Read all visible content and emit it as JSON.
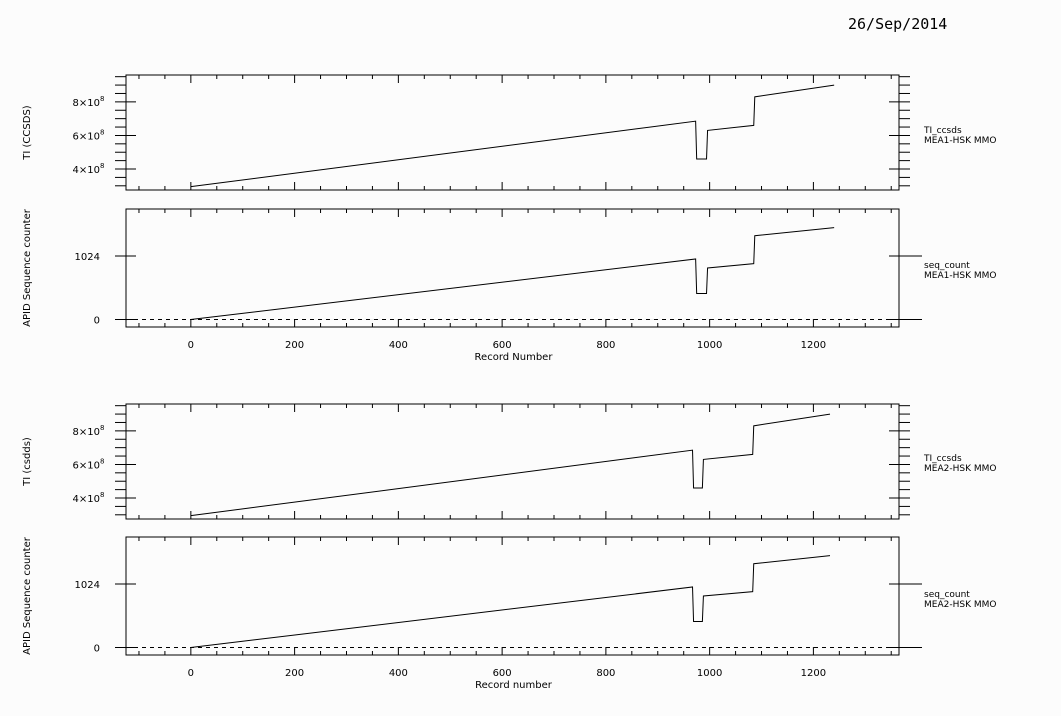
{
  "date": "26/Sep/2014",
  "chart_data": [
    {
      "type": "line",
      "ylabel": "TI (CCSDS)",
      "ylim": [
        275000000.0,
        960000000.0
      ],
      "xlim": [
        -125,
        1365
      ],
      "yticks_major": [
        400000000.0,
        600000000.0,
        800000000.0
      ],
      "ytick_labels": [
        "4×10⁸",
        "6×10⁸",
        "8×10⁸"
      ],
      "yticks_minor": [
        300000000.0,
        350000000.0,
        450000000.0,
        500000000.0,
        550000000.0,
        650000000.0,
        700000000.0,
        750000000.0,
        850000000.0,
        900000000.0,
        950000000.0
      ],
      "legend": [
        "TI_ccsds",
        "MEA1-HSK MMO"
      ],
      "series": [
        {
          "x": [
            0,
            973,
            975,
            994,
            996,
            1085,
            1087,
            1240
          ],
          "y": [
            295000000.0,
            685000000.0,
            460000000.0,
            460000000.0,
            630000000.0,
            660000000.0,
            830000000.0,
            900000000.0
          ]
        }
      ]
    },
    {
      "type": "line",
      "ylabel": "APID Sequence counter",
      "xlabel": "Record Number",
      "ylim": [
        -120,
        1780
      ],
      "xlim": [
        -125,
        1365
      ],
      "xticks": [
        0,
        200,
        400,
        600,
        800,
        1000,
        1200
      ],
      "xtick_labels": [
        "0",
        "200",
        "400",
        "600",
        "800",
        "1000",
        "1200"
      ],
      "yticks_major": [
        0,
        1024
      ],
      "ytick_labels": [
        "0",
        "1024"
      ],
      "dashed_zero_line": true,
      "legend": [
        "seq_count",
        "MEA1-HSK MMO"
      ],
      "series": [
        {
          "x": [
            0,
            973,
            975,
            994,
            996,
            1085,
            1087,
            1240
          ],
          "y": [
            0,
            975,
            420,
            420,
            830,
            900,
            1350,
            1480
          ]
        }
      ]
    },
    {
      "type": "line",
      "ylabel": "TI (csdds)",
      "ylim": [
        275000000.0,
        960000000.0
      ],
      "xlim": [
        -125,
        1365
      ],
      "yticks_major": [
        400000000.0,
        600000000.0,
        800000000.0
      ],
      "ytick_labels": [
        "4×10⁸",
        "6×10⁸",
        "8×10⁸"
      ],
      "yticks_minor": [
        300000000.0,
        350000000.0,
        450000000.0,
        500000000.0,
        550000000.0,
        650000000.0,
        700000000.0,
        750000000.0,
        850000000.0,
        900000000.0,
        950000000.0
      ],
      "legend": [
        "TI_ccsds",
        "MEA2-HSK MMO"
      ],
      "series": [
        {
          "x": [
            0,
            967,
            969,
            986,
            988,
            1083,
            1085,
            1232
          ],
          "y": [
            295000000.0,
            685000000.0,
            460000000.0,
            460000000.0,
            630000000.0,
            660000000.0,
            830000000.0,
            900000000.0
          ]
        }
      ]
    },
    {
      "type": "line",
      "ylabel": "APID Sequence counter",
      "xlabel": "Record number",
      "ylim": [
        -120,
        1780
      ],
      "xlim": [
        -125,
        1365
      ],
      "xticks": [
        0,
        200,
        400,
        600,
        800,
        1000,
        1200
      ],
      "xtick_labels": [
        "0",
        "200",
        "400",
        "600",
        "800",
        "1000",
        "1200"
      ],
      "yticks_major": [
        0,
        1024
      ],
      "ytick_labels": [
        "0",
        "1024"
      ],
      "dashed_zero_line": true,
      "legend": [
        "seq_count",
        "MEA2-HSK MMO"
      ],
      "series": [
        {
          "x": [
            0,
            967,
            969,
            986,
            988,
            1083,
            1085,
            1232
          ],
          "y": [
            0,
            975,
            420,
            420,
            830,
            900,
            1350,
            1480
          ]
        }
      ]
    }
  ]
}
